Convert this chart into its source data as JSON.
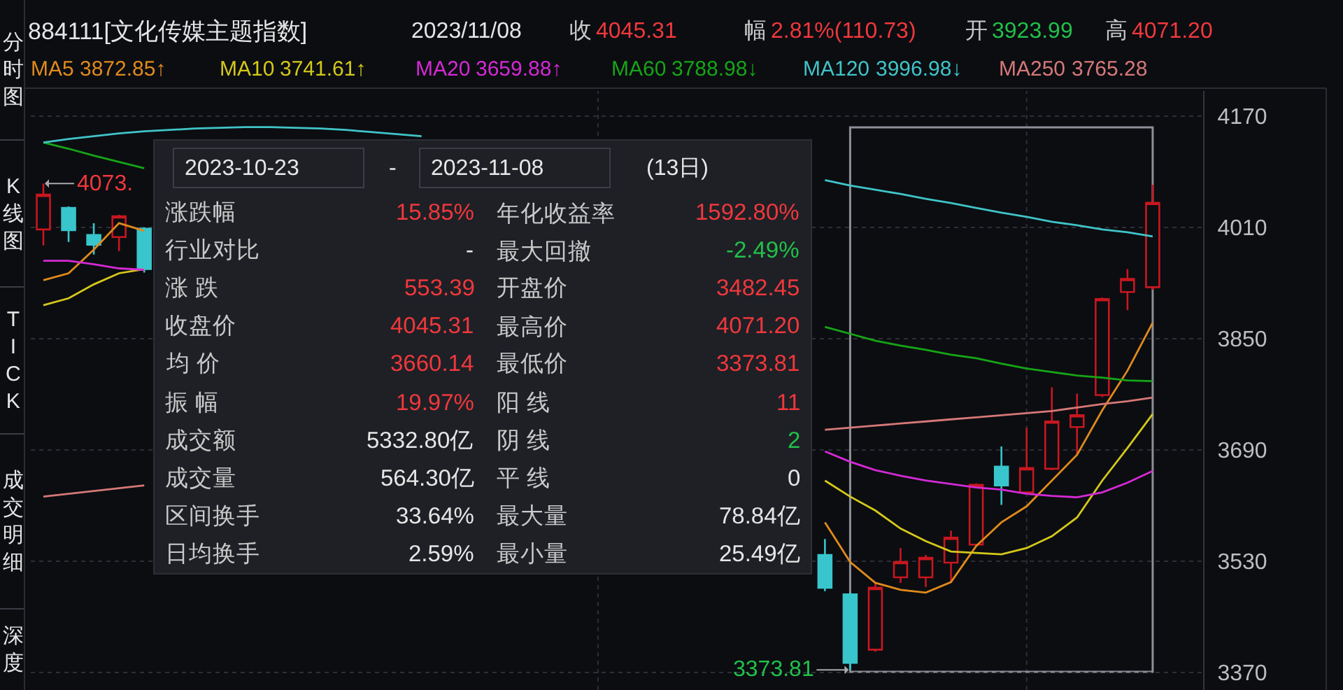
{
  "chart_data": [
    {
      "type": "candlestick",
      "title": "884111[文化传媒主题指数]",
      "subtitle": "2023/11/08",
      "categories": [
        null,
        null,
        null,
        null,
        null,
        null,
        null,
        null,
        null,
        null,
        null,
        null,
        null,
        null,
        null,
        null,
        null,
        null,
        null,
        null,
        null,
        null,
        null,
        null,
        null,
        null,
        null,
        null,
        null,
        null,
        null,
        null,
        null,
        null,
        null,
        null,
        null,
        null,
        null,
        null,
        null,
        null,
        null,
        null,
        null
      ],
      "ohlc": [
        [
          4007,
          4073,
          3984,
          4057
        ],
        [
          4038,
          4040,
          3989,
          4006
        ],
        [
          3999,
          4016,
          3971,
          3985
        ],
        [
          3996,
          4028,
          3976,
          4026
        ],
        [
          4008,
          4010,
          3945,
          3950
        ],
        null,
        null,
        null,
        null,
        null,
        null,
        null,
        null,
        null,
        null,
        null,
        null,
        null,
        null,
        null,
        null,
        null,
        null,
        null,
        null,
        null,
        null,
        null,
        null,
        null,
        null,
        [
          3539,
          3562,
          3487,
          3492
        ],
        [
          3482.45,
          3485,
          3373.81,
          3384
        ],
        [
          3403,
          3499,
          3400,
          3492
        ],
        [
          3507,
          3549,
          3499,
          3529
        ],
        [
          3507,
          3539,
          3493,
          3535
        ],
        [
          3528,
          3574,
          3500,
          3564
        ],
        [
          3554,
          3642,
          3552,
          3640
        ],
        [
          3666,
          3695,
          3611,
          3639
        ],
        [
          3629,
          3722,
          3628,
          3664
        ],
        [
          3663,
          3780,
          3661,
          3731
        ],
        [
          3723,
          3771,
          3683,
          3740
        ],
        [
          3769,
          3909,
          3766,
          3907
        ],
        [
          3917,
          3950,
          3891,
          3936
        ],
        [
          3923.99,
          4071.2,
          3920,
          4045.31
        ]
      ],
      "series": [
        {
          "name": "MA5",
          "type": "line",
          "color": "#e08a1c",
          "values": [
            3934,
            3944,
            3978,
            4016,
            4005,
            null,
            null,
            null,
            null,
            null,
            null,
            null,
            null,
            null,
            null,
            null,
            null,
            null,
            null,
            null,
            null,
            null,
            null,
            null,
            null,
            null,
            null,
            null,
            null,
            null,
            null,
            3586,
            3529,
            3499,
            3489,
            3485,
            3500,
            3552,
            3586,
            3609,
            3646,
            3683,
            3747,
            3804,
            3872.85
          ]
        },
        {
          "name": "MA10",
          "type": "line",
          "color": "#d4c81a",
          "values": [
            3898,
            3908,
            3928,
            3944,
            3950,
            null,
            null,
            null,
            null,
            null,
            null,
            null,
            null,
            null,
            null,
            null,
            null,
            null,
            null,
            null,
            null,
            null,
            null,
            null,
            null,
            null,
            null,
            null,
            null,
            null,
            null,
            3646,
            3623,
            3603,
            3577,
            3559,
            3544,
            3542,
            3540,
            3549,
            3566,
            3593,
            3646,
            3693,
            3741.61
          ]
        },
        {
          "name": "MA20",
          "type": "line",
          "color": "#d42ad4",
          "values": [
            3962,
            3962,
            3957,
            3951,
            3949,
            null,
            null,
            null,
            null,
            null,
            null,
            null,
            null,
            null,
            null,
            null,
            null,
            null,
            null,
            null,
            null,
            null,
            null,
            null,
            null,
            null,
            null,
            null,
            null,
            null,
            null,
            3688,
            3673,
            3661,
            3653,
            3646,
            3641,
            3636,
            3633,
            3627,
            3624,
            3622,
            3629,
            3643,
            3659.88
          ]
        },
        {
          "name": "MA60",
          "type": "line",
          "color": "#16a516",
          "values": [
            4132,
            4123,
            4113,
            4104,
            4095,
            null,
            null,
            null,
            null,
            null,
            null,
            null,
            null,
            null,
            null,
            null,
            null,
            null,
            null,
            null,
            null,
            null,
            null,
            null,
            null,
            null,
            null,
            null,
            null,
            null,
            null,
            3867,
            3857,
            3847,
            3840,
            3834,
            3827,
            3822,
            3814,
            3807,
            3802,
            3797,
            3794,
            3790,
            3788.98
          ]
        },
        {
          "name": "MA120",
          "type": "line",
          "color": "#40c4c8",
          "values": [
            4132,
            4137,
            4141,
            4145,
            4148,
            4150,
            4152,
            4153,
            4154,
            4154,
            4153,
            4152,
            4150,
            4147,
            4144,
            4141,
            null,
            null,
            null,
            null,
            null,
            null,
            null,
            null,
            null,
            null,
            null,
            null,
            null,
            null,
            null,
            4078,
            4070,
            4064,
            4058,
            4051,
            4045,
            4038,
            4031,
            4025,
            4018,
            4013,
            4007,
            4003,
            3996.98
          ]
        },
        {
          "name": "MA250",
          "type": "line",
          "color": "#d67878",
          "values": [
            3623,
            3627,
            3631,
            3635,
            3639,
            null,
            null,
            null,
            null,
            null,
            null,
            null,
            null,
            null,
            null,
            null,
            null,
            null,
            null,
            null,
            null,
            null,
            null,
            null,
            null,
            null,
            null,
            null,
            null,
            null,
            null,
            3719,
            3722,
            3725,
            3728,
            3731,
            3734,
            3737,
            3740,
            3743,
            3746,
            3751,
            3756,
            3760,
            3765.28
          ]
        }
      ],
      "ylim": [
        3345,
        4206
      ],
      "yticks": [
        4170,
        4010,
        3850,
        3690,
        3530,
        3370
      ],
      "grid": "y",
      "legend": "top",
      "tick_labels": "y",
      "annotations": [
        "收",
        "4045.31",
        "幅",
        "2.81%(110.73)",
        "开",
        "3923.99",
        "高",
        "4071.20",
        "3872.85↑",
        "3741.61↑",
        "3659.88↑",
        "3788.98↓",
        "3996.98↓",
        "3765.28",
        "4073.",
        "3373.81"
      ]
    },
    {
      "type": "other",
      "annotations": [
        "2023-10-23",
        "-",
        "2023-11-08",
        "(13日)"
      ],
      "categories": [
        "涨跌幅",
        "年化收益率",
        "行业对比",
        "最大回撤",
        "涨 跌",
        "开盘价",
        "收盘价",
        "最高价",
        "均 价",
        "最低价",
        "振 幅",
        "阳 线",
        "成交额",
        "阴 线",
        "成交量",
        "平 线",
        "区间换手",
        "最大量",
        "日均换手",
        "最小量"
      ],
      "value_labels": [
        "15.85%",
        "1592.80%",
        "-",
        "-2.49%",
        "553.39",
        "3482.45",
        "4045.31",
        "4071.20",
        "3660.14",
        "3373.81",
        "19.97%",
        "11",
        "5332.80亿",
        "2",
        "564.30亿",
        "0",
        "33.64%",
        "78.84亿",
        "2.59%",
        "25.49亿"
      ],
      "colors": [
        "#f0383c",
        "#f0383c",
        "#e6e6e6",
        "#22c04a",
        "#f0383c",
        "#f0383c",
        "#f0383c",
        "#f0383c",
        "#f0383c",
        "#f0383c",
        "#f0383c",
        "#f0383c",
        "#e6e6e6",
        "#22c04a",
        "#e6e6e6",
        "#e6e6e6",
        "#e6e6e6",
        "#e6e6e6",
        "#e6e6e6",
        "#e6e6e6"
      ]
    },
    {
      "type": "other",
      "categories": [
        "分时图",
        "K线图",
        "TICK",
        "成交明细",
        "深度"
      ]
    }
  ]
}
